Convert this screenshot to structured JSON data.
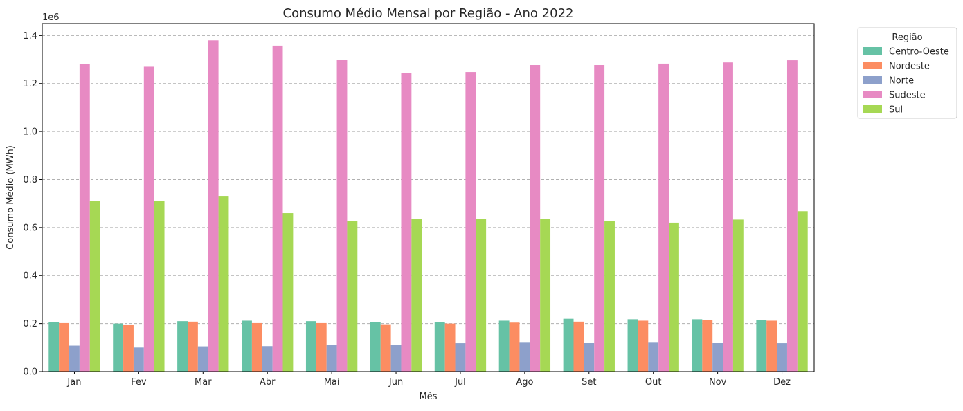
{
  "chart_data": {
    "type": "bar",
    "title": "Consumo Médio Mensal por Região - Ano 2022",
    "xlabel": "Mês",
    "ylabel": "Consumo Médio (MWh)",
    "y_offset_text": "1e6",
    "categories": [
      "Jan",
      "Fev",
      "Mar",
      "Abr",
      "Mai",
      "Jun",
      "Jul",
      "Ago",
      "Set",
      "Out",
      "Nov",
      "Dez"
    ],
    "ylim": [
      0,
      1450000
    ],
    "yticks": [
      0,
      200000,
      400000,
      600000,
      800000,
      1000000,
      1200000,
      1400000
    ],
    "ytick_labels": [
      "0.0",
      "0.2",
      "0.4",
      "0.6",
      "0.8",
      "1.0",
      "1.2",
      "1.4"
    ],
    "grid": "horizontal dashed",
    "legend": {
      "title": "Região",
      "placement": "outside upper-right"
    },
    "series": [
      {
        "name": "Centro-Oeste",
        "color": "#66c2a5",
        "values": [
          205000,
          200000,
          210000,
          212000,
          210000,
          205000,
          207000,
          212000,
          220000,
          218000,
          218000,
          215000
        ]
      },
      {
        "name": "Nordeste",
        "color": "#fc8d62",
        "values": [
          202000,
          196000,
          208000,
          202000,
          202000,
          197000,
          200000,
          204000,
          208000,
          212000,
          215000,
          212000
        ]
      },
      {
        "name": "Norte",
        "color": "#8da0cb",
        "values": [
          108000,
          100000,
          105000,
          106000,
          112000,
          112000,
          118000,
          123000,
          120000,
          123000,
          120000,
          118000
        ]
      },
      {
        "name": "Sudeste",
        "color": "#e78ac3",
        "values": [
          1280000,
          1270000,
          1380000,
          1358000,
          1300000,
          1245000,
          1248000,
          1277000,
          1277000,
          1283000,
          1288000,
          1297000
        ]
      },
      {
        "name": "Sul",
        "color": "#a6d854",
        "values": [
          710000,
          712000,
          732000,
          660000,
          628000,
          635000,
          637000,
          637000,
          628000,
          620000,
          633000,
          668000
        ]
      }
    ]
  }
}
